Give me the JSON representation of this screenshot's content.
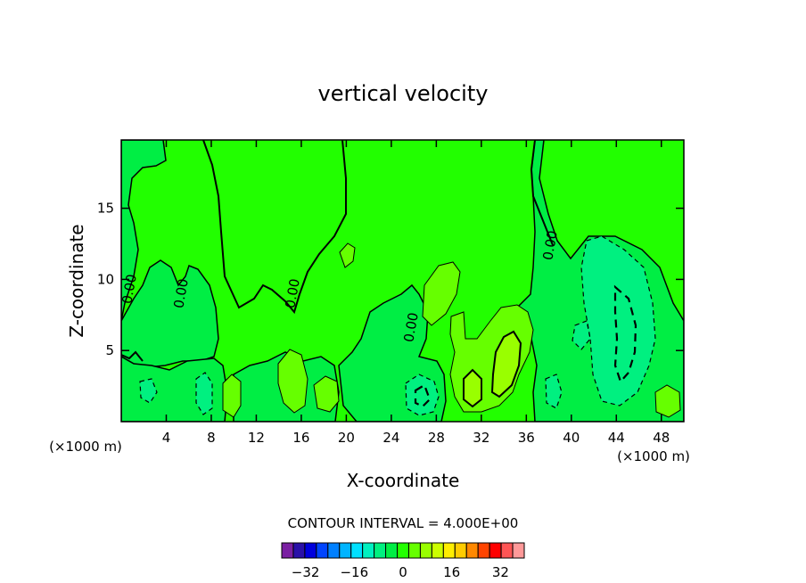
{
  "chart_data": {
    "type": "contour",
    "title": "vertical velocity",
    "xlabel": "X-coordinate",
    "ylabel": "Z-coordinate",
    "x_unit_left": "(×1000 m)",
    "x_unit_right": "(×1000 m)",
    "xlim": [
      0,
      50
    ],
    "ylim": [
      0,
      19.8
    ],
    "x_ticks": [
      "4",
      "8",
      "12",
      "16",
      "20",
      "24",
      "28",
      "32",
      "36",
      "40",
      "44",
      "48"
    ],
    "x_tick_values": [
      4,
      8,
      12,
      16,
      20,
      24,
      28,
      32,
      36,
      40,
      44,
      48
    ],
    "y_ticks": [
      "5",
      "10",
      "15"
    ],
    "y_tick_values": [
      5,
      10,
      15
    ],
    "contour_interval_text": "CONTOUR INTERVAL = 4.000E+00",
    "zero_contour_label": "0.00",
    "colorbar": {
      "levels": [
        -36,
        -32,
        -28,
        -24,
        -20,
        -16,
        -12,
        -8,
        -4,
        0,
        4,
        8,
        12,
        16,
        20,
        24,
        28,
        32,
        36
      ],
      "tick_labels": [
        "−32",
        "−16",
        "0",
        "16",
        "32"
      ],
      "tick_values": [
        -32,
        -16,
        0,
        16,
        32
      ],
      "colors": [
        "#7a1fa2",
        "#2a10a8",
        "#0000dd",
        "#0044ff",
        "#0080ff",
        "#00b4ff",
        "#00e0ff",
        "#00f0c0",
        "#00f080",
        "#00ee44",
        "#22ff00",
        "#66ff00",
        "#99ff00",
        "#ccff00",
        "#ffee00",
        "#ffcc00",
        "#ff8800",
        "#ff4400",
        "#ff0000",
        "#ff5555",
        "#ff9999"
      ]
    },
    "background_color": "#22ff00",
    "features": [
      {
        "kind": "updraft",
        "x": 29.0,
        "z": 10.5,
        "level": 4
      },
      {
        "kind": "updraft",
        "x": 34.0,
        "z": 5.0,
        "level": 8
      },
      {
        "kind": "updraft",
        "x": 31.5,
        "z": 2.2,
        "level": 8
      },
      {
        "kind": "updraft",
        "x": 15.0,
        "z": 3.0,
        "level": 4
      },
      {
        "kind": "updraft",
        "x": 9.8,
        "z": 1.8,
        "level": 4
      },
      {
        "kind": "updraft",
        "x": 48.5,
        "z": 1.5,
        "level": 4
      },
      {
        "kind": "downdraft",
        "x": 44.0,
        "z": 7.0,
        "level": -8
      },
      {
        "kind": "downdraft",
        "x": 26.5,
        "z": 1.8,
        "level": -8
      },
      {
        "kind": "downdraft",
        "x": 7.5,
        "z": 1.5,
        "level": -4
      }
    ]
  }
}
